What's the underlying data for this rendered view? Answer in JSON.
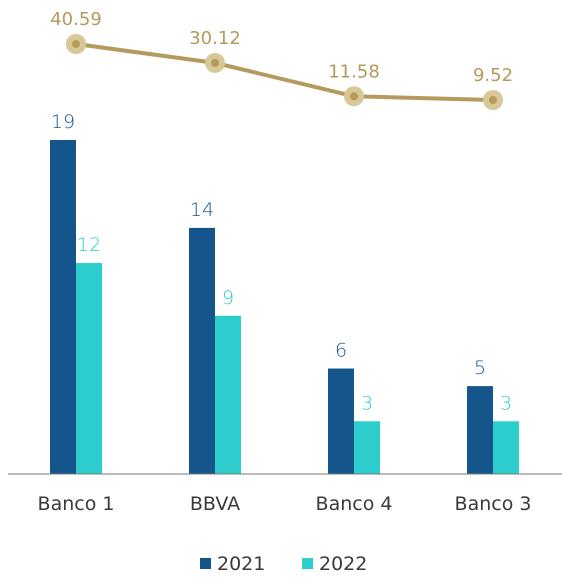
{
  "chart_data": {
    "type": "bar",
    "categories": [
      "Banco 1",
      "BBVA",
      "Banco 4",
      "Banco 3"
    ],
    "series": [
      {
        "name": "2021",
        "values": [
          19,
          14,
          6,
          5
        ],
        "color": "#14558c"
      },
      {
        "name": "2022",
        "values": [
          12,
          9,
          3,
          3
        ],
        "color": "#2dcccd"
      }
    ],
    "line_series": {
      "values": [
        40.59,
        30.12,
        11.58,
        9.52
      ],
      "labels": [
        "40.59",
        "30.12",
        "11.58",
        "9.52"
      ],
      "color": "#b49a5c",
      "marker_color": "#d8c797"
    },
    "bar_labels": {
      "2021": [
        "19",
        "14",
        "6",
        "5"
      ],
      "2022": [
        "12",
        "9",
        "3",
        "3"
      ]
    },
    "legend_position": "bottom",
    "grid": false
  }
}
